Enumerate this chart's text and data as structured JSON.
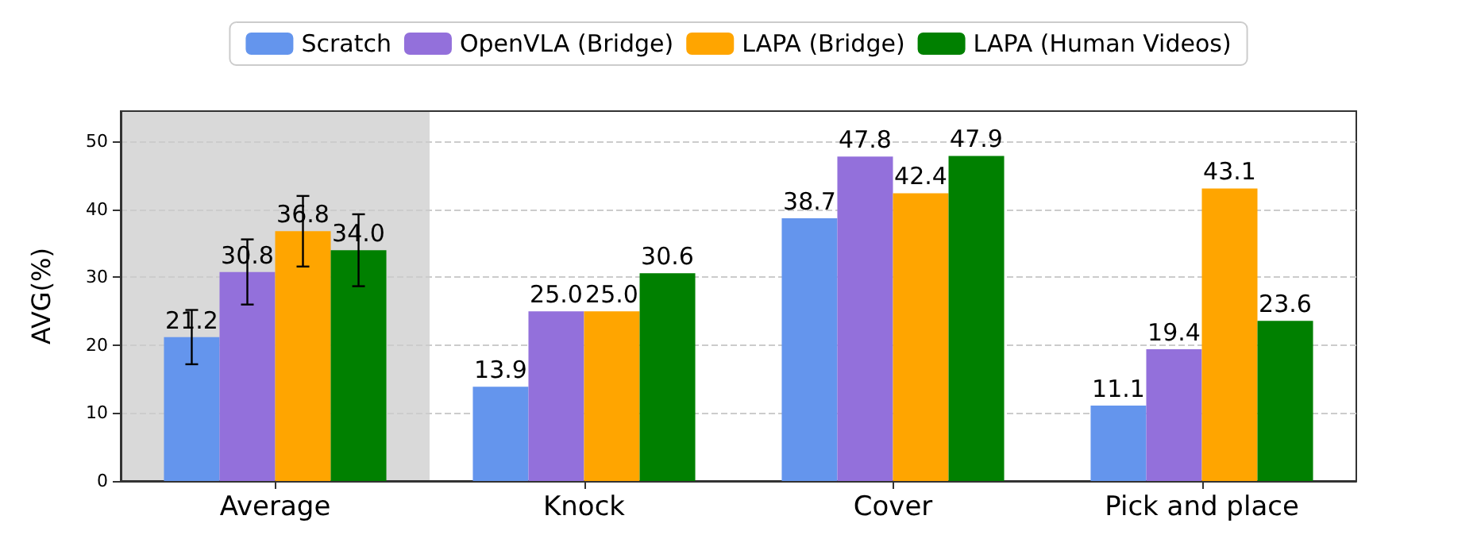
{
  "chart_data": {
    "type": "bar",
    "ylabel": "AVG(%)",
    "categories": [
      "Average",
      "Knock",
      "Cover",
      "Pick and place"
    ],
    "series": [
      {
        "name": "Scratch",
        "color": "#6495ed",
        "values": [
          21.2,
          13.9,
          38.7,
          11.1
        ],
        "value_labels": [
          "21.2",
          "13.9",
          "38.7",
          "11.1"
        ],
        "errors": [
          4.0,
          null,
          null,
          null
        ]
      },
      {
        "name": "OpenVLA (Bridge)",
        "color": "#9370db",
        "values": [
          30.8,
          25.0,
          47.8,
          19.4
        ],
        "value_labels": [
          "30.8",
          "25.0",
          "47.8",
          "19.4"
        ],
        "errors": [
          4.8,
          null,
          null,
          null
        ]
      },
      {
        "name": "LAPA (Bridge)",
        "color": "#ffa500",
        "values": [
          36.8,
          25.0,
          42.4,
          43.1
        ],
        "value_labels": [
          "36.8",
          "25.0",
          "42.4",
          "43.1"
        ],
        "errors": [
          5.2,
          null,
          null,
          null
        ]
      },
      {
        "name": "LAPA (Human Videos)",
        "color": "#008000",
        "values": [
          34.0,
          30.6,
          47.9,
          23.6
        ],
        "value_labels": [
          "34.0",
          "30.6",
          "47.9",
          "23.6"
        ],
        "errors": [
          5.3,
          null,
          null,
          null
        ]
      }
    ],
    "ylim": [
      0,
      54.5
    ],
    "yticks": [
      0,
      10,
      20,
      30,
      40,
      50
    ],
    "grid": "y",
    "legend": "top",
    "bands": [
      {
        "axis": "x",
        "from": "Average",
        "to": "Average",
        "color": "#d9d9d9"
      }
    ]
  }
}
